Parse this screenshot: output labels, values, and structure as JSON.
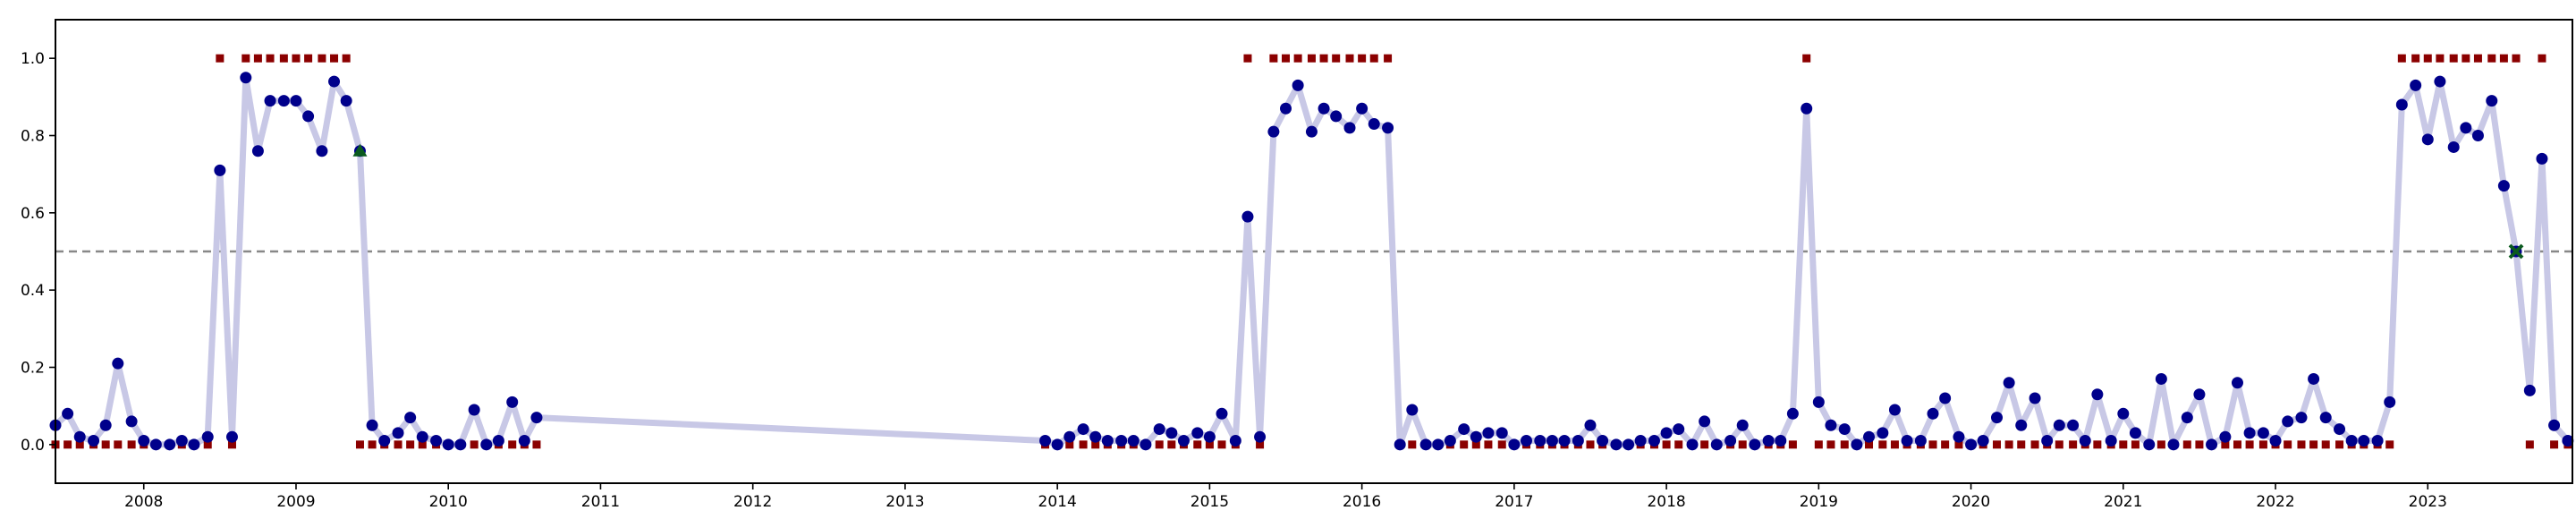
{
  "chart_data": {
    "type": "line",
    "title": "",
    "xlabel": "",
    "ylabel": "",
    "xlim": [
      2007.42,
      2023.95
    ],
    "ylim": [
      -0.1,
      1.1
    ],
    "x_ticks": [
      2008,
      2009,
      2010,
      2011,
      2012,
      2013,
      2014,
      2015,
      2016,
      2017,
      2018,
      2019,
      2020,
      2021,
      2022,
      2023
    ],
    "y_ticks": [
      0.0,
      0.2,
      0.4,
      0.6,
      0.8,
      1.0
    ],
    "x_tick_labels": [
      "2008",
      "2009",
      "2010",
      "2011",
      "2012",
      "2013",
      "2014",
      "2015",
      "2016",
      "2017",
      "2018",
      "2019",
      "2020",
      "2021",
      "2022",
      "2023"
    ],
    "y_tick_labels": [
      "0.0",
      "0.2",
      "0.4",
      "0.6",
      "0.8",
      "1.0"
    ],
    "threshold": 0.5,
    "grid": false,
    "legend": "none",
    "colors": {
      "line": "#c8c8e6",
      "point": "#00008b",
      "state": "#8b0000",
      "threshold": "#888888",
      "triangle_marker": "#0b5a1e",
      "x_marker": "#0b5a1e",
      "frame": "#000000"
    },
    "series": [
      {
        "values": [
          [
            2007.42,
            0.05
          ],
          [
            2007.5,
            0.08
          ],
          [
            2007.58,
            0.02
          ],
          [
            2007.67,
            0.01
          ],
          [
            2007.75,
            0.05
          ],
          [
            2007.83,
            0.21
          ],
          [
            2007.92,
            0.06
          ],
          [
            2008.0,
            0.01
          ],
          [
            2008.08,
            0.0
          ],
          [
            2008.17,
            0.0
          ],
          [
            2008.25,
            0.01
          ],
          [
            2008.33,
            0.0
          ],
          [
            2008.42,
            0.02
          ],
          [
            2008.5,
            0.71
          ],
          [
            2008.58,
            0.02
          ],
          [
            2008.67,
            0.95
          ],
          [
            2008.75,
            0.76
          ],
          [
            2008.83,
            0.89
          ],
          [
            2008.92,
            0.89
          ],
          [
            2009.0,
            0.89
          ],
          [
            2009.08,
            0.85
          ],
          [
            2009.17,
            0.76
          ],
          [
            2009.25,
            0.94
          ],
          [
            2009.33,
            0.89
          ],
          [
            2009.42,
            0.76
          ],
          [
            2009.5,
            0.05
          ],
          [
            2009.58,
            0.01
          ],
          [
            2009.67,
            0.03
          ],
          [
            2009.75,
            0.07
          ],
          [
            2009.83,
            0.02
          ],
          [
            2009.92,
            0.01
          ],
          [
            2010.0,
            0.0
          ],
          [
            2010.08,
            0.0
          ],
          [
            2010.17,
            0.09
          ],
          [
            2010.25,
            0.0
          ],
          [
            2010.33,
            0.01
          ],
          [
            2010.42,
            0.11
          ],
          [
            2010.5,
            0.01
          ],
          [
            2010.58,
            0.07
          ],
          [
            2013.92,
            0.01
          ],
          [
            2014.0,
            0.0
          ],
          [
            2014.08,
            0.02
          ],
          [
            2014.17,
            0.04
          ],
          [
            2014.25,
            0.02
          ],
          [
            2014.33,
            0.01
          ],
          [
            2014.42,
            0.01
          ],
          [
            2014.5,
            0.01
          ],
          [
            2014.58,
            0.0
          ],
          [
            2014.67,
            0.04
          ],
          [
            2014.75,
            0.03
          ],
          [
            2014.83,
            0.01
          ],
          [
            2014.92,
            0.03
          ],
          [
            2015.0,
            0.02
          ],
          [
            2015.08,
            0.08
          ],
          [
            2015.17,
            0.01
          ],
          [
            2015.25,
            0.59
          ],
          [
            2015.33,
            0.02
          ],
          [
            2015.42,
            0.81
          ],
          [
            2015.5,
            0.87
          ],
          [
            2015.58,
            0.93
          ],
          [
            2015.67,
            0.81
          ],
          [
            2015.75,
            0.87
          ],
          [
            2015.83,
            0.85
          ],
          [
            2015.92,
            0.82
          ],
          [
            2016.0,
            0.87
          ],
          [
            2016.08,
            0.83
          ],
          [
            2016.17,
            0.82
          ],
          [
            2016.25,
            0.0
          ],
          [
            2016.33,
            0.09
          ],
          [
            2016.42,
            0.0
          ],
          [
            2016.5,
            0.0
          ],
          [
            2016.58,
            0.01
          ],
          [
            2016.67,
            0.04
          ],
          [
            2016.75,
            0.02
          ],
          [
            2016.83,
            0.03
          ],
          [
            2016.92,
            0.03
          ],
          [
            2017.0,
            0.0
          ],
          [
            2017.08,
            0.01
          ],
          [
            2017.17,
            0.01
          ],
          [
            2017.25,
            0.01
          ],
          [
            2017.33,
            0.01
          ],
          [
            2017.42,
            0.01
          ],
          [
            2017.5,
            0.05
          ],
          [
            2017.58,
            0.01
          ],
          [
            2017.67,
            0.0
          ],
          [
            2017.75,
            0.0
          ],
          [
            2017.83,
            0.01
          ],
          [
            2017.92,
            0.01
          ],
          [
            2018.0,
            0.03
          ],
          [
            2018.08,
            0.04
          ],
          [
            2018.17,
            0.0
          ],
          [
            2018.25,
            0.06
          ],
          [
            2018.33,
            0.0
          ],
          [
            2018.42,
            0.01
          ],
          [
            2018.5,
            0.05
          ],
          [
            2018.58,
            0.0
          ],
          [
            2018.67,
            0.01
          ],
          [
            2018.75,
            0.01
          ],
          [
            2018.83,
            0.08
          ],
          [
            2018.92,
            0.87
          ],
          [
            2019.0,
            0.11
          ],
          [
            2019.08,
            0.05
          ],
          [
            2019.17,
            0.04
          ],
          [
            2019.25,
            0.0
          ],
          [
            2019.33,
            0.02
          ],
          [
            2019.42,
            0.03
          ],
          [
            2019.5,
            0.09
          ],
          [
            2019.58,
            0.01
          ],
          [
            2019.67,
            0.01
          ],
          [
            2019.75,
            0.08
          ],
          [
            2019.83,
            0.12
          ],
          [
            2019.92,
            0.02
          ],
          [
            2020.0,
            0.0
          ],
          [
            2020.08,
            0.01
          ],
          [
            2020.17,
            0.07
          ],
          [
            2020.25,
            0.16
          ],
          [
            2020.33,
            0.05
          ],
          [
            2020.42,
            0.12
          ],
          [
            2020.5,
            0.01
          ],
          [
            2020.58,
            0.05
          ],
          [
            2020.67,
            0.05
          ],
          [
            2020.75,
            0.01
          ],
          [
            2020.83,
            0.13
          ],
          [
            2020.92,
            0.01
          ],
          [
            2021.0,
            0.08
          ],
          [
            2021.08,
            0.03
          ],
          [
            2021.17,
            0.0
          ],
          [
            2021.25,
            0.17
          ],
          [
            2021.33,
            0.0
          ],
          [
            2021.42,
            0.07
          ],
          [
            2021.5,
            0.13
          ],
          [
            2021.58,
            0.0
          ],
          [
            2021.67,
            0.02
          ],
          [
            2021.75,
            0.16
          ],
          [
            2021.83,
            0.03
          ],
          [
            2021.92,
            0.03
          ],
          [
            2022.0,
            0.01
          ],
          [
            2022.08,
            0.06
          ],
          [
            2022.17,
            0.07
          ],
          [
            2022.25,
            0.17
          ],
          [
            2022.33,
            0.07
          ],
          [
            2022.42,
            0.04
          ],
          [
            2022.5,
            0.01
          ],
          [
            2022.58,
            0.01
          ],
          [
            2022.67,
            0.01
          ],
          [
            2022.75,
            0.11
          ],
          [
            2022.83,
            0.88
          ],
          [
            2022.92,
            0.93
          ],
          [
            2023.0,
            0.79
          ],
          [
            2023.08,
            0.94
          ],
          [
            2023.17,
            0.77
          ],
          [
            2023.25,
            0.82
          ],
          [
            2023.33,
            0.8
          ],
          [
            2023.42,
            0.89
          ],
          [
            2023.5,
            0.67
          ],
          [
            2023.58,
            0.5
          ],
          [
            2023.67,
            0.14
          ],
          [
            2023.75,
            0.74
          ],
          [
            2023.83,
            0.05
          ],
          [
            2023.92,
            0.01
          ]
        ]
      }
    ],
    "state_markers": [
      [
        2007.42,
        0
      ],
      [
        2007.5,
        0
      ],
      [
        2007.58,
        0
      ],
      [
        2007.67,
        0
      ],
      [
        2007.75,
        0
      ],
      [
        2007.83,
        0
      ],
      [
        2007.92,
        0
      ],
      [
        2008.0,
        0
      ],
      [
        2008.08,
        0
      ],
      [
        2008.17,
        0
      ],
      [
        2008.25,
        0
      ],
      [
        2008.33,
        0
      ],
      [
        2008.42,
        0
      ],
      [
        2008.5,
        1
      ],
      [
        2008.58,
        0
      ],
      [
        2008.67,
        1
      ],
      [
        2008.75,
        1
      ],
      [
        2008.83,
        1
      ],
      [
        2008.92,
        1
      ],
      [
        2009.0,
        1
      ],
      [
        2009.08,
        1
      ],
      [
        2009.17,
        1
      ],
      [
        2009.25,
        1
      ],
      [
        2009.33,
        1
      ],
      [
        2009.42,
        0
      ],
      [
        2009.5,
        0
      ],
      [
        2009.58,
        0
      ],
      [
        2009.67,
        0
      ],
      [
        2009.75,
        0
      ],
      [
        2009.83,
        0
      ],
      [
        2009.92,
        0
      ],
      [
        2010.0,
        0
      ],
      [
        2010.08,
        0
      ],
      [
        2010.17,
        0
      ],
      [
        2010.25,
        0
      ],
      [
        2010.33,
        0
      ],
      [
        2010.42,
        0
      ],
      [
        2010.5,
        0
      ],
      [
        2010.58,
        0
      ],
      [
        2013.92,
        0
      ],
      [
        2014.0,
        0
      ],
      [
        2014.08,
        0
      ],
      [
        2014.17,
        0
      ],
      [
        2014.25,
        0
      ],
      [
        2014.33,
        0
      ],
      [
        2014.42,
        0
      ],
      [
        2014.5,
        0
      ],
      [
        2014.58,
        0
      ],
      [
        2014.67,
        0
      ],
      [
        2014.75,
        0
      ],
      [
        2014.83,
        0
      ],
      [
        2014.92,
        0
      ],
      [
        2015.0,
        0
      ],
      [
        2015.08,
        0
      ],
      [
        2015.17,
        0
      ],
      [
        2015.25,
        1
      ],
      [
        2015.33,
        0
      ],
      [
        2015.42,
        1
      ],
      [
        2015.5,
        1
      ],
      [
        2015.58,
        1
      ],
      [
        2015.67,
        1
      ],
      [
        2015.75,
        1
      ],
      [
        2015.83,
        1
      ],
      [
        2015.92,
        1
      ],
      [
        2016.0,
        1
      ],
      [
        2016.08,
        1
      ],
      [
        2016.17,
        1
      ],
      [
        2016.25,
        0
      ],
      [
        2016.33,
        0
      ],
      [
        2016.42,
        0
      ],
      [
        2016.5,
        0
      ],
      [
        2016.58,
        0
      ],
      [
        2016.67,
        0
      ],
      [
        2016.75,
        0
      ],
      [
        2016.83,
        0
      ],
      [
        2016.92,
        0
      ],
      [
        2017.0,
        0
      ],
      [
        2017.08,
        0
      ],
      [
        2017.17,
        0
      ],
      [
        2017.25,
        0
      ],
      [
        2017.33,
        0
      ],
      [
        2017.42,
        0
      ],
      [
        2017.5,
        0
      ],
      [
        2017.58,
        0
      ],
      [
        2017.67,
        0
      ],
      [
        2017.75,
        0
      ],
      [
        2017.83,
        0
      ],
      [
        2017.92,
        0
      ],
      [
        2018.0,
        0
      ],
      [
        2018.08,
        0
      ],
      [
        2018.17,
        0
      ],
      [
        2018.25,
        0
      ],
      [
        2018.33,
        0
      ],
      [
        2018.42,
        0
      ],
      [
        2018.5,
        0
      ],
      [
        2018.58,
        0
      ],
      [
        2018.67,
        0
      ],
      [
        2018.75,
        0
      ],
      [
        2018.83,
        0
      ],
      [
        2018.92,
        1
      ],
      [
        2019.0,
        0
      ],
      [
        2019.08,
        0
      ],
      [
        2019.17,
        0
      ],
      [
        2019.25,
        0
      ],
      [
        2019.33,
        0
      ],
      [
        2019.42,
        0
      ],
      [
        2019.5,
        0
      ],
      [
        2019.58,
        0
      ],
      [
        2019.67,
        0
      ],
      [
        2019.75,
        0
      ],
      [
        2019.83,
        0
      ],
      [
        2019.92,
        0
      ],
      [
        2020.0,
        0
      ],
      [
        2020.08,
        0
      ],
      [
        2020.17,
        0
      ],
      [
        2020.25,
        0
      ],
      [
        2020.33,
        0
      ],
      [
        2020.42,
        0
      ],
      [
        2020.5,
        0
      ],
      [
        2020.58,
        0
      ],
      [
        2020.67,
        0
      ],
      [
        2020.75,
        0
      ],
      [
        2020.83,
        0
      ],
      [
        2020.92,
        0
      ],
      [
        2021.0,
        0
      ],
      [
        2021.08,
        0
      ],
      [
        2021.17,
        0
      ],
      [
        2021.25,
        0
      ],
      [
        2021.33,
        0
      ],
      [
        2021.42,
        0
      ],
      [
        2021.5,
        0
      ],
      [
        2021.58,
        0
      ],
      [
        2021.67,
        0
      ],
      [
        2021.75,
        0
      ],
      [
        2021.83,
        0
      ],
      [
        2021.92,
        0
      ],
      [
        2022.0,
        0
      ],
      [
        2022.08,
        0
      ],
      [
        2022.17,
        0
      ],
      [
        2022.25,
        0
      ],
      [
        2022.33,
        0
      ],
      [
        2022.42,
        0
      ],
      [
        2022.5,
        0
      ],
      [
        2022.58,
        0
      ],
      [
        2022.67,
        0
      ],
      [
        2022.75,
        0
      ],
      [
        2022.83,
        1
      ],
      [
        2022.92,
        1
      ],
      [
        2023.0,
        1
      ],
      [
        2023.08,
        1
      ],
      [
        2023.17,
        1
      ],
      [
        2023.25,
        1
      ],
      [
        2023.33,
        1
      ],
      [
        2023.42,
        1
      ],
      [
        2023.5,
        1
      ],
      [
        2023.58,
        1
      ],
      [
        2023.67,
        0
      ],
      [
        2023.75,
        1
      ],
      [
        2023.83,
        0
      ],
      [
        2023.92,
        0
      ]
    ],
    "annotations": [
      {
        "shape": "triangle",
        "x": 2009.42,
        "y": 0.76
      },
      {
        "shape": "x",
        "x": 2023.58,
        "y": 0.5
      }
    ]
  }
}
